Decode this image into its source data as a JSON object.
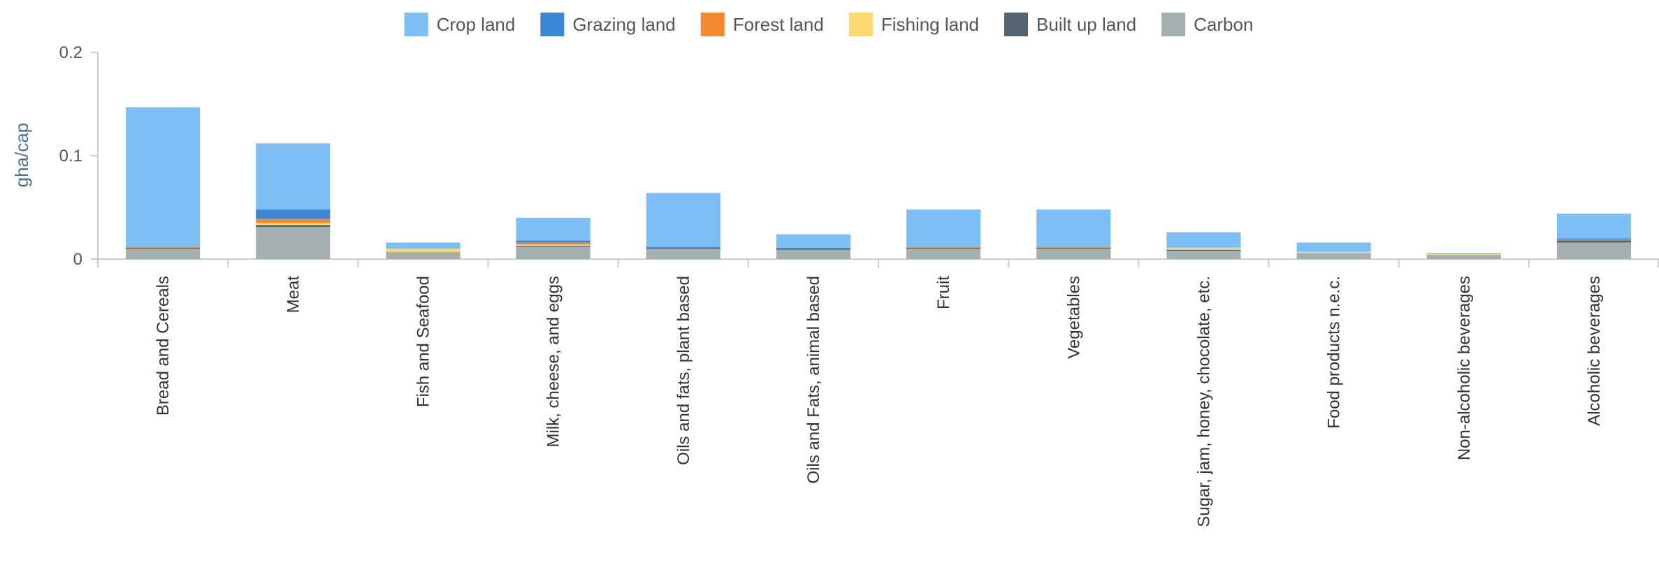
{
  "chart_data": {
    "type": "bar",
    "stacked": true,
    "title": "",
    "xlabel": "",
    "ylabel": "gha/cap",
    "ylim": [
      0,
      0.2
    ],
    "yticks": [
      {
        "value": 0,
        "label": "0"
      },
      {
        "value": 0.1,
        "label": "0.1"
      },
      {
        "value": 0.2,
        "label": "0.2"
      }
    ],
    "grid": false,
    "legend_position": "top-center",
    "categories": [
      "Bread and Cereals",
      "Meat",
      "Fish and Seafood",
      "Milk, cheese, and eggs",
      "Oils and fats, plant based",
      "Oils and Fats, animal based",
      "Fruit",
      "Vegetables",
      "Sugar, jam, honey, chocolate, etc.",
      "Food products n.e.c.",
      "Non-alcoholic beverages",
      "Alcoholic beverages"
    ],
    "series": [
      {
        "name": "Carbon",
        "color": "#a3b0af",
        "values": [
          0.01,
          0.031,
          0.007,
          0.012,
          0.01,
          0.009,
          0.01,
          0.01,
          0.008,
          0.006,
          0.004,
          0.016
        ]
      },
      {
        "name": "Built up land",
        "color": "#56646f",
        "values": [
          0.001,
          0.002,
          0.0,
          0.001,
          0.001,
          0.001,
          0.001,
          0.001,
          0.001,
          0.0,
          0.0,
          0.002
        ]
      },
      {
        "name": "Fishing land",
        "color": "#fdd86f",
        "values": [
          0.0,
          0.002,
          0.003,
          0.001,
          0.0,
          0.0,
          0.0,
          0.0,
          0.002,
          0.001,
          0.001,
          0.0
        ]
      },
      {
        "name": "Forest land",
        "color": "#f5892f",
        "values": [
          0.001,
          0.004,
          0.0,
          0.002,
          0.0,
          0.0,
          0.001,
          0.001,
          0.0,
          0.0,
          0.0,
          0.001
        ]
      },
      {
        "name": "Grazing land",
        "color": "#3d86d4",
        "values": [
          0.0,
          0.009,
          0.0,
          0.002,
          0.001,
          0.001,
          0.0,
          0.0,
          0.0,
          0.0,
          0.0,
          0.001
        ]
      },
      {
        "name": "Crop land",
        "color": "#7dbff5",
        "values": [
          0.135,
          0.064,
          0.006,
          0.022,
          0.052,
          0.013,
          0.036,
          0.036,
          0.015,
          0.009,
          0.001,
          0.024
        ]
      }
    ],
    "legend_order": [
      "Crop land",
      "Grazing land",
      "Forest land",
      "Fishing land",
      "Built up land",
      "Carbon"
    ]
  }
}
